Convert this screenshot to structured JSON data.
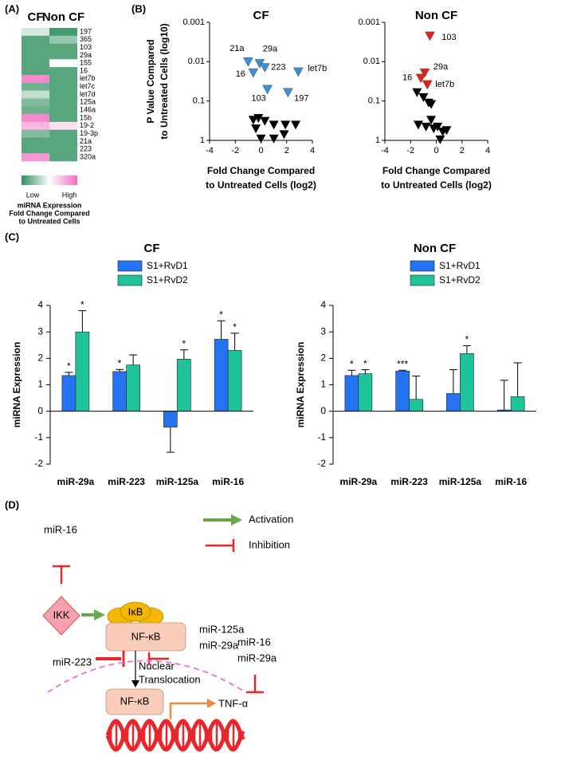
{
  "panel_labels": [
    "(A)",
    "(B)",
    "(C)",
    "(D)"
  ],
  "chart_data": [
    {
      "type": "heatmap",
      "columns": [
        "CF",
        "Non CF"
      ],
      "rows": [
        "197",
        "365",
        "103",
        "29a",
        "155",
        "16",
        "let7b",
        "let7c",
        "let7d",
        "125a",
        "146a",
        "15b",
        "19-2",
        "19-3p",
        "21a",
        "223",
        "320a"
      ],
      "values": [
        [
          -0.2,
          -0.9
        ],
        [
          -0.8,
          -0.5
        ],
        [
          -0.8,
          -0.8
        ],
        [
          -0.8,
          -0.8
        ],
        [
          -0.8,
          0.0
        ],
        [
          -0.8,
          -0.8
        ],
        [
          0.8,
          -0.8
        ],
        [
          -0.7,
          -0.8
        ],
        [
          -0.3,
          -0.8
        ],
        [
          -0.6,
          -0.8
        ],
        [
          -0.7,
          -0.8
        ],
        [
          0.8,
          -0.8
        ],
        [
          0.5,
          0.2
        ],
        [
          -0.6,
          -0.8
        ],
        [
          -0.8,
          -0.8
        ],
        [
          -0.8,
          -0.8
        ],
        [
          0.7,
          -0.8
        ]
      ],
      "zlim": [
        -1,
        1
      ],
      "colorscale": [
        "#2f8f5e",
        "#ffffff",
        "#f56ac4"
      ],
      "colorbar_ticks": [
        {
          "value": -1,
          "label": "Low"
        },
        {
          "value": 1,
          "label": "High"
        }
      ],
      "colorbar_title": [
        "miRNA Expression",
        "Fold Change Compared",
        "to Untreated Cells"
      ]
    },
    {
      "type": "scatter",
      "title": "CF",
      "xlabel": [
        "Fold Change Compared",
        "to Untreated Cells (log2)"
      ],
      "ylabel": [
        "P Value Compared",
        "to Untreated Cells (log10)"
      ],
      "xlim": [
        -4,
        4
      ],
      "xticks": [
        -4,
        -2,
        0,
        2,
        4
      ],
      "ylim": [
        1,
        0.001
      ],
      "yticks": [
        0.001,
        0.01,
        0.1,
        1
      ],
      "ylog": true,
      "series": [
        {
          "color": "#3a8fd8",
          "x": [
            -1.0,
            -0.1,
            -0.6,
            0.3,
            2.9,
            0.5,
            2.1
          ],
          "values": [
            0.01,
            0.011,
            0.019,
            0.014,
            0.018,
            0.05,
            0.06
          ],
          "point_labels": [
            "21a",
            "29a",
            "16",
            "223",
            "let7b",
            "103",
            "197"
          ]
        },
        {
          "color": "#000000",
          "x": [
            -0.6,
            -0.2,
            0.3,
            -0.4,
            1.0,
            1.9,
            2.7,
            1.8,
            1.0,
            0.0
          ],
          "values": [
            0.3,
            0.27,
            0.32,
            0.5,
            0.4,
            0.4,
            0.4,
            0.7,
            0.9,
            0.9
          ]
        }
      ]
    },
    {
      "type": "scatter",
      "title": "Non CF",
      "xlabel": [
        "Fold Change Compared",
        "to Untreated Cells (log2)"
      ],
      "xlim": [
        -4,
        4
      ],
      "xticks": [
        -4,
        -2,
        0,
        2,
        4
      ],
      "ylim": [
        1,
        0.001
      ],
      "yticks": [
        0.001,
        0.01,
        0.1,
        1
      ],
      "ylog": true,
      "series": [
        {
          "color": "#e3201b",
          "x": [
            -0.5,
            -0.9,
            -1.2,
            -0.7
          ],
          "values": [
            0.0022,
            0.019,
            0.026,
            0.038
          ],
          "point_labels": [
            "103",
            "29a",
            "16",
            "let7b"
          ]
        },
        {
          "color": "#000000",
          "x": [
            -1.5,
            -1.0,
            -0.6,
            -0.4,
            -1.4,
            -0.8,
            -0.2,
            0.1,
            0.5,
            0.8,
            -0.4,
            0.3
          ],
          "values": [
            0.06,
            0.08,
            0.11,
            0.12,
            0.4,
            0.45,
            0.5,
            0.45,
            0.6,
            0.55,
            0.3,
            0.95
          ]
        }
      ]
    },
    {
      "type": "bar",
      "title": "CF",
      "ylabel": "miRNA Expression",
      "categories": [
        "miR-29a",
        "miR-223",
        "miR-125a",
        "miR-16"
      ],
      "ylim": [
        -2,
        4
      ],
      "yticks": [
        -2,
        -1,
        0,
        1,
        2,
        3,
        4
      ],
      "series": [
        {
          "name": "S1+RvD1",
          "color": "#2473f2",
          "values": [
            1.35,
            1.5,
            -0.6,
            2.72
          ],
          "errors": [
            0.12,
            0.08,
            0.95,
            0.7
          ],
          "annotations": [
            "*",
            "*",
            null,
            "*"
          ]
        },
        {
          "name": "S1+RvD2",
          "color": "#1fc39b",
          "values": [
            3.0,
            1.75,
            1.97,
            2.3
          ],
          "errors": [
            0.8,
            0.38,
            0.35,
            0.65
          ],
          "annotations": [
            "*",
            null,
            "*",
            "*"
          ]
        }
      ]
    },
    {
      "type": "bar",
      "title": "Non CF",
      "ylabel": "miRNA Expression",
      "categories": [
        "miR-29a",
        "miR-223",
        "miR-125a",
        "miR-16"
      ],
      "ylim": [
        -2,
        4
      ],
      "yticks": [
        -2,
        -1,
        0,
        1,
        2,
        3,
        4
      ],
      "series": [
        {
          "name": "S1+RvD1",
          "color": "#2473f2",
          "values": [
            1.35,
            1.52,
            0.67,
            0.05
          ],
          "errors": [
            0.2,
            0.03,
            0.9,
            1.12
          ],
          "annotations": [
            "*",
            "***",
            null,
            null
          ]
        },
        {
          "name": "S1+RvD2",
          "color": "#1fc39b",
          "values": [
            1.42,
            0.45,
            2.18,
            0.55
          ],
          "errors": [
            0.15,
            0.88,
            0.3,
            1.28
          ],
          "annotations": [
            "*",
            null,
            "*",
            null
          ]
        }
      ]
    }
  ],
  "diagram": {
    "legend": [
      "Activation",
      "Inhibition"
    ],
    "mir_top": "miR-16",
    "ikk": "IKK",
    "ikb": "IκB",
    "nfkb": "NF-κB",
    "nfkb_nucleus": "NF-κB",
    "tnf": "TNF-α",
    "mirs_nfkb": [
      "miR-125a",
      "miR-29a"
    ],
    "mir_223": "miR-223",
    "translocation": [
      "Nuclear",
      "Translocation"
    ],
    "mirs_tnf": [
      "miR-16",
      "miR-29a"
    ]
  }
}
